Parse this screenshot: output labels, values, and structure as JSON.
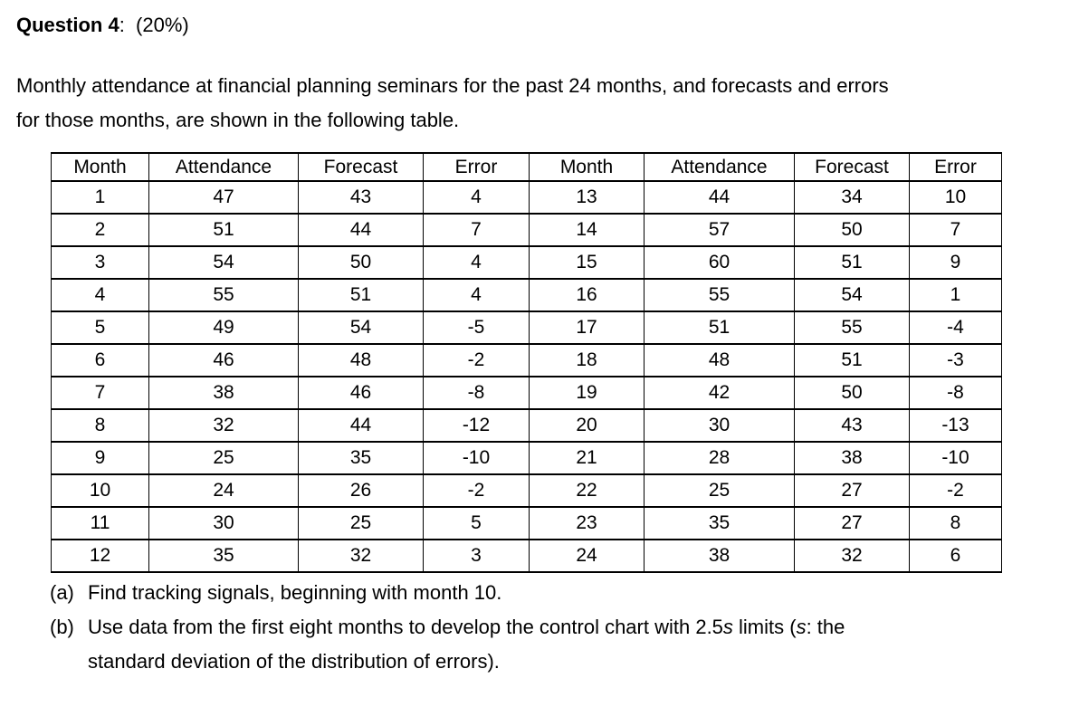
{
  "heading": {
    "title": "Question 4",
    "suffix": ":  (20%)"
  },
  "intro": {
    "line1": "Monthly attendance at financial planning seminars for the past 24 months, and forecasts and errors",
    "line2": "for those months, are shown in the following table."
  },
  "table": {
    "headers": [
      "Month",
      "Attendance",
      "Forecast",
      "Error",
      "Month",
      "Attendance",
      "Forecast",
      "Error"
    ],
    "rows": [
      [
        1,
        47,
        43,
        4,
        13,
        44,
        34,
        10
      ],
      [
        2,
        51,
        44,
        7,
        14,
        57,
        50,
        7
      ],
      [
        3,
        54,
        50,
        4,
        15,
        60,
        51,
        9
      ],
      [
        4,
        55,
        51,
        4,
        16,
        55,
        54,
        1
      ],
      [
        5,
        49,
        54,
        -5,
        17,
        51,
        55,
        -4
      ],
      [
        6,
        46,
        48,
        -2,
        18,
        48,
        51,
        -3
      ],
      [
        7,
        38,
        46,
        -8,
        19,
        42,
        50,
        -8
      ],
      [
        8,
        32,
        44,
        -12,
        20,
        30,
        43,
        -13
      ],
      [
        9,
        25,
        35,
        -10,
        21,
        28,
        38,
        -10
      ],
      [
        10,
        24,
        26,
        -2,
        22,
        25,
        27,
        -2
      ],
      [
        11,
        30,
        25,
        5,
        23,
        35,
        27,
        8
      ],
      [
        12,
        35,
        32,
        3,
        24,
        38,
        32,
        6
      ]
    ]
  },
  "parts": {
    "a_marker": "(a)",
    "a_text": "Find tracking signals, beginning with month 10.",
    "b_marker": "(b)",
    "b_text_1": "Use data from the first eight months to develop the control chart with 2.5",
    "b_italic_s1": "s",
    "b_text_2": " limits (",
    "b_italic_s2": "s",
    "b_text_3": ": the",
    "b_line2": "standard deviation of the distribution of errors)."
  },
  "colors": {
    "text": "#000000",
    "background": "#ffffff",
    "table_border": "#000000"
  }
}
